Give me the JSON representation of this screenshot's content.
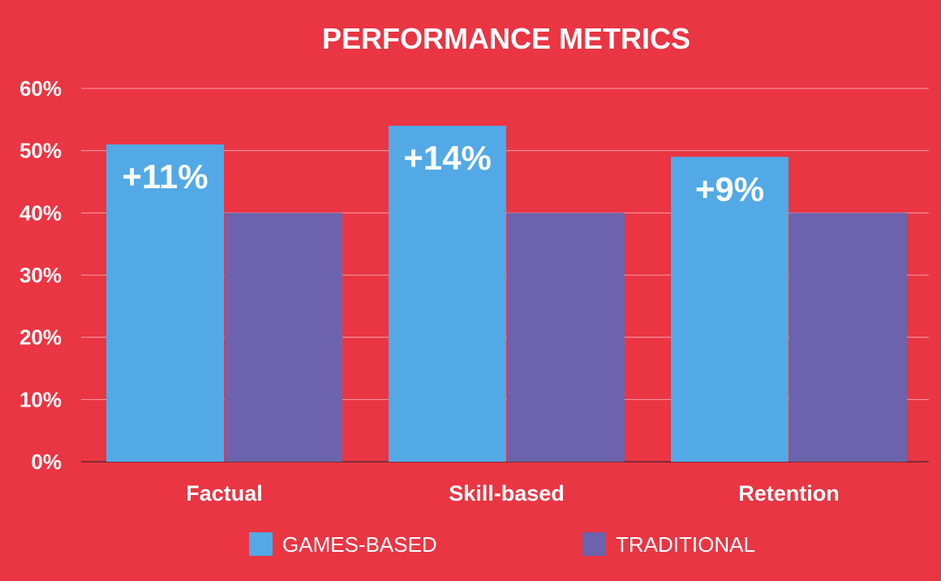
{
  "chart_data": {
    "type": "bar",
    "title": "PERFORMANCE METRICS",
    "categories": [
      "Factual",
      "Skill-based",
      "Retention"
    ],
    "series": [
      {
        "name": "GAMES-BASED",
        "values": [
          51,
          54,
          49
        ],
        "color": "#52A9E6"
      },
      {
        "name": "TRADITIONAL",
        "values": [
          40,
          40,
          40
        ],
        "color": "#6C63AC"
      }
    ],
    "data_labels": [
      "+11%",
      "+14%",
      "+9%"
    ],
    "y_ticks": [
      "0%",
      "10%",
      "20%",
      "30%",
      "40%",
      "50%",
      "60%"
    ],
    "ylim": [
      0,
      60
    ],
    "y_tick_values": [
      0,
      10,
      20,
      30,
      40,
      50,
      60
    ],
    "grid": true,
    "legend_position": "bottom",
    "xlabel": "",
    "ylabel": ""
  },
  "colors": {
    "background": "#EA3543",
    "text": "#FFFFFF",
    "gridline": "#F3A0A7"
  }
}
